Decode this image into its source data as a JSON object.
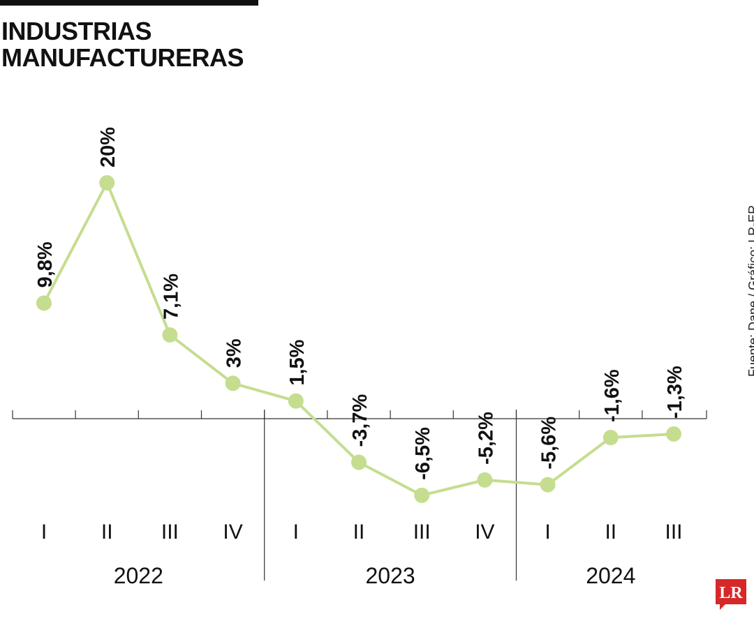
{
  "title_lines": [
    "INDUSTRIAS",
    "MANUFACTURERAS"
  ],
  "source": "Fuente: Dane / Gráfico: LR-ER",
  "logo_text": "LR",
  "colors": {
    "line": "#c5dd8f",
    "marker": "#c5dd8f",
    "text": "#111111",
    "axis": "#333333",
    "logo": "#d62828"
  },
  "chart_data": {
    "type": "line",
    "title": "INDUSTRIAS MANUFACTURERAS",
    "categories": [
      "I",
      "II",
      "III",
      "IV",
      "I",
      "II",
      "III",
      "IV",
      "I",
      "II",
      "III"
    ],
    "groups": [
      {
        "label": "2022",
        "count": 4
      },
      {
        "label": "2023",
        "count": 4
      },
      {
        "label": "2024",
        "count": 3
      }
    ],
    "values": [
      9.8,
      20,
      7.1,
      3,
      1.5,
      -3.7,
      -6.5,
      -5.2,
      -5.6,
      -1.6,
      -1.3
    ],
    "labels": [
      "9,8%",
      "20%",
      "7,1%",
      "3%",
      "1,5%",
      "-3,7%",
      "-6,5%",
      "-5,2%",
      "-5,6%",
      "-1,6%",
      "-1,3%"
    ],
    "ylim": [
      -8,
      20
    ],
    "grid": false,
    "xlabel": "",
    "ylabel": ""
  }
}
